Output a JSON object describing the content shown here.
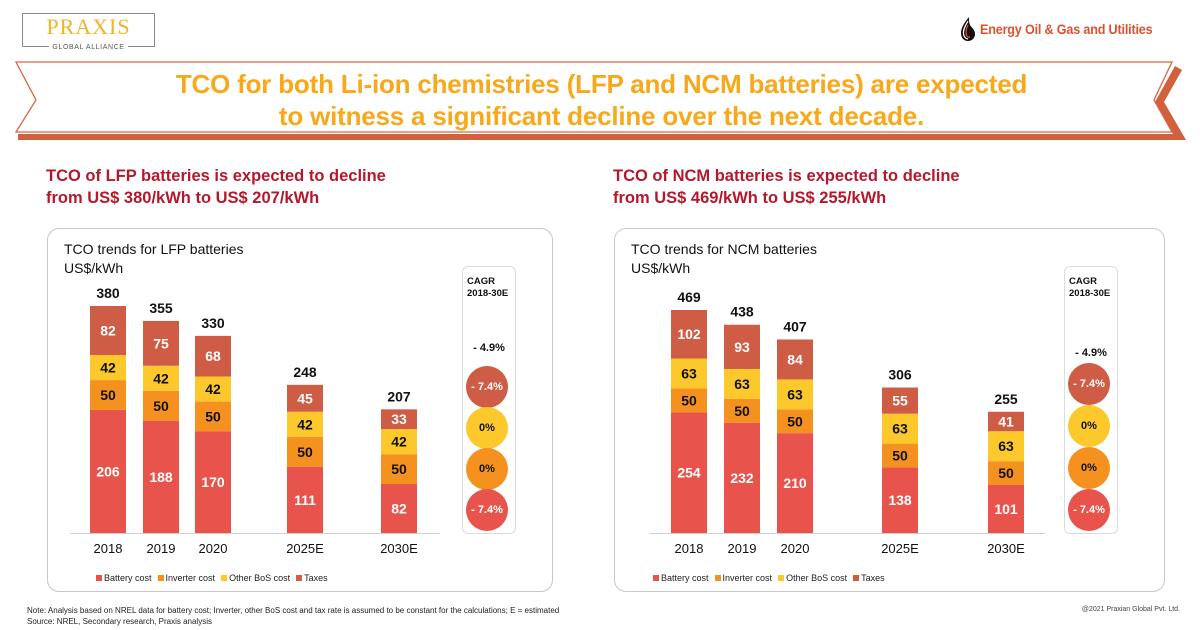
{
  "logos": {
    "left": {
      "name": "PRAXIS",
      "tagline": "GLOBAL ALLIANCE"
    },
    "right": {
      "text": "Energy Oil & Gas and Utilities",
      "icon": "oil-drop-icon"
    }
  },
  "banner": {
    "line1": "TCO for both Li-ion chemistries (LFP and NCM batteries) are expected",
    "line2": "to witness a significant decline over the next decade."
  },
  "colors": {
    "battery": "#e8544c",
    "inverter": "#f5911e",
    "bos": "#fdc82b",
    "taxes": "#cf5c44",
    "headline": "#f7a81b",
    "subhead": "#b5182d",
    "banner_border": "#d9663f"
  },
  "legend": [
    {
      "key": "battery",
      "label": "Battery cost"
    },
    {
      "key": "inverter",
      "label": "Inverter cost"
    },
    {
      "key": "bos",
      "label": "Other BoS cost"
    },
    {
      "key": "taxes",
      "label": "Taxes"
    }
  ],
  "lfp": {
    "subhead_line1": "TCO of LFP batteries is expected to decline",
    "subhead_line2": "from US$ 380/kWh to US$ 207/kWh",
    "chart_title": "TCO trends for LFP batteries",
    "chart_unit": "US$/kWh",
    "cagr": {
      "header_line1": "CAGR",
      "header_line2": "2018-30E",
      "total": "- 4.9%",
      "taxes": "- 7.4%",
      "bos": "0%",
      "inverter": "0%",
      "battery": "- 7.4%"
    }
  },
  "ncm": {
    "subhead_line1": "TCO of NCM batteries is expected to decline",
    "subhead_line2": "from US$ 469/kWh to US$ 255/kWh",
    "chart_title": "TCO trends for NCM batteries",
    "chart_unit": "US$/kWh",
    "cagr": {
      "header_line1": "CAGR",
      "header_line2": "2018-30E",
      "total": "- 4.9%",
      "taxes": "- 7.4%",
      "bos": "0%",
      "inverter": "0%",
      "battery": "- 7.4%"
    }
  },
  "chart_data": [
    {
      "type": "bar",
      "stacked": true,
      "title": "TCO trends for LFP batteries",
      "ylabel": "US$/kWh",
      "xlabel": "",
      "categories": [
        "2018",
        "2019",
        "2020",
        "2025E",
        "2030E"
      ],
      "series": [
        {
          "name": "Battery cost",
          "key": "battery",
          "values": [
            206,
            188,
            170,
            111,
            82
          ]
        },
        {
          "name": "Inverter cost",
          "key": "inverter",
          "values": [
            50,
            50,
            50,
            50,
            50
          ]
        },
        {
          "name": "Other BoS cost",
          "key": "bos",
          "values": [
            42,
            42,
            42,
            42,
            42
          ]
        },
        {
          "name": "Taxes",
          "key": "taxes",
          "values": [
            82,
            75,
            68,
            45,
            33
          ]
        }
      ],
      "totals": [
        380,
        355,
        330,
        248,
        207
      ],
      "ylim": [
        0,
        380
      ],
      "grid": false,
      "legend": "bottom"
    },
    {
      "type": "bar",
      "stacked": true,
      "title": "TCO trends for NCM batteries",
      "ylabel": "US$/kWh",
      "xlabel": "",
      "categories": [
        "2018",
        "2019",
        "2020",
        "2025E",
        "2030E"
      ],
      "series": [
        {
          "name": "Battery cost",
          "key": "battery",
          "values": [
            254,
            232,
            210,
            138,
            101
          ]
        },
        {
          "name": "Inverter cost",
          "key": "inverter",
          "values": [
            50,
            50,
            50,
            50,
            50
          ]
        },
        {
          "name": "Other BoS cost",
          "key": "bos",
          "values": [
            63,
            63,
            63,
            63,
            63
          ]
        },
        {
          "name": "Taxes",
          "key": "taxes",
          "values": [
            102,
            93,
            84,
            55,
            41
          ]
        }
      ],
      "totals": [
        469,
        438,
        407,
        306,
        255
      ],
      "ylim": [
        0,
        469
      ],
      "grid": false,
      "legend": "bottom"
    }
  ],
  "footer": {
    "note": "Note: Analysis based on NREL data for battery cost; Inverter, other BoS cost and tax rate is assumed to be constant for the calculations; E = estimated",
    "source": "Source: NREL, Secondary research, Praxis analysis",
    "copyright": "@2021 Praxian Global Pvt. Ltd."
  }
}
